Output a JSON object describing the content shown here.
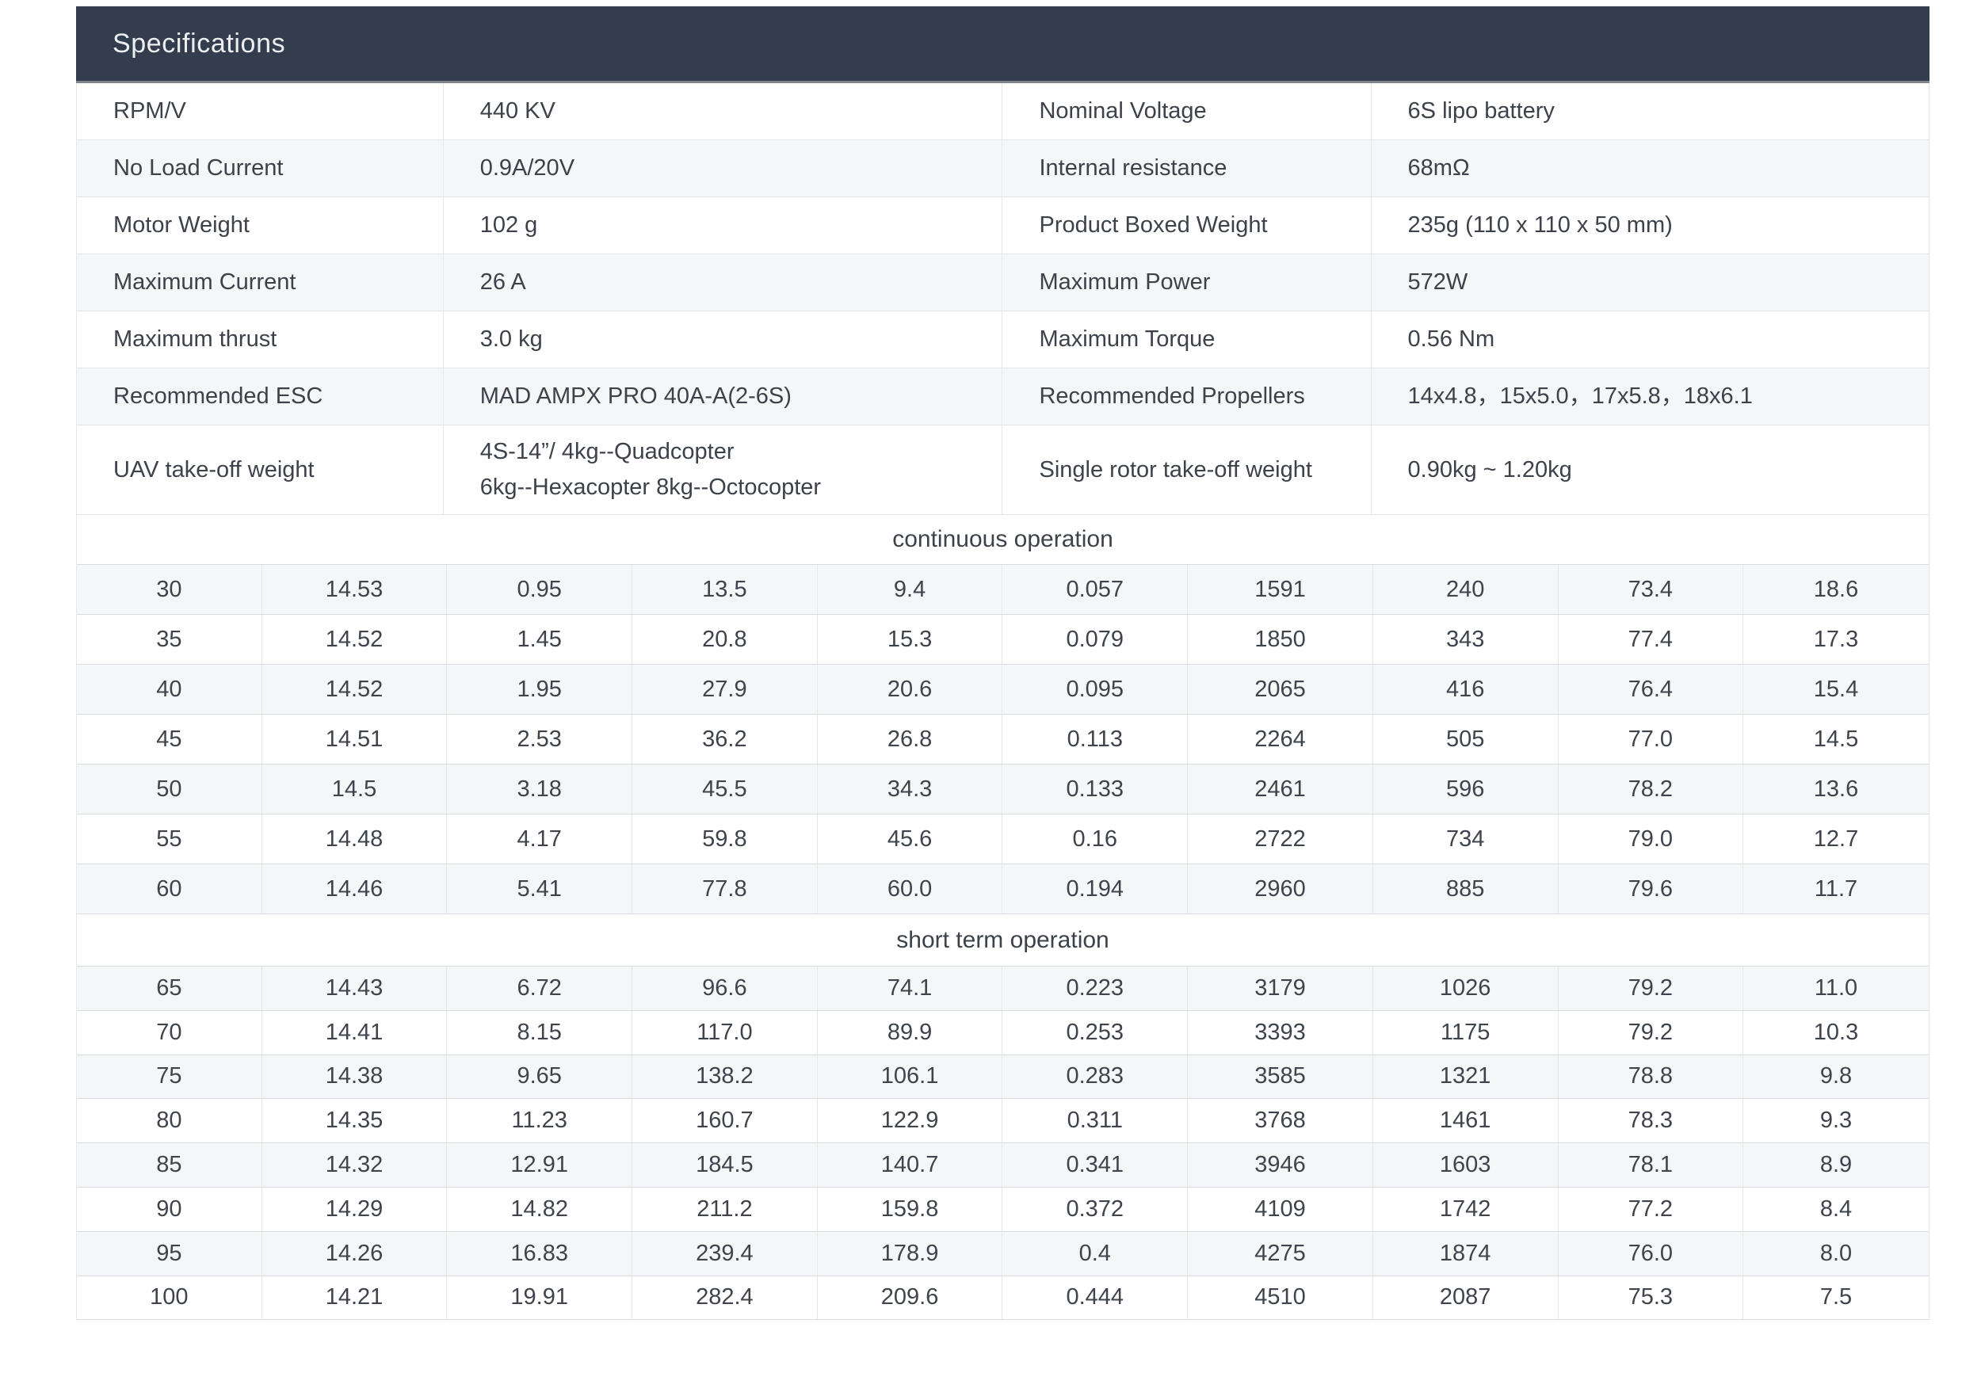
{
  "title": "Specifications",
  "colors": {
    "header_bg": "#333d4d",
    "header_text": "#eceef0",
    "header_divider": "#7f868f",
    "stripe": "#f5f6f8",
    "row_border": "#d9dce0",
    "row_border_light": "#e2e5e8",
    "col_border": "#e5e8eb",
    "text": "#3d424a",
    "num_text": "#3f444c"
  },
  "spec_table": {
    "rows": [
      {
        "cells": [
          {
            "label": "RPM/V",
            "value": "440 KV"
          },
          {
            "label": "Nominal Voltage",
            "value": "6S lipo battery"
          }
        ]
      },
      {
        "cells": [
          {
            "label": "No Load Current",
            "value": "0.9A/20V"
          },
          {
            "label": "Internal resistance",
            "value": "68mΩ"
          }
        ]
      },
      {
        "cells": [
          {
            "label": "Motor Weight",
            "value": "102 g"
          },
          {
            "label": "Product Boxed Weight",
            "value": "235g (110 x 110 x 50 mm)"
          }
        ]
      },
      {
        "cells": [
          {
            "label": "Maximum Current",
            "value": "26 A"
          },
          {
            "label": "Maximum Power",
            "value": "572W"
          }
        ]
      },
      {
        "cells": [
          {
            "label": "Maximum thrust",
            "value": "3.0 kg"
          },
          {
            "label": "Maximum Torque",
            "value": "0.56 Nm"
          }
        ]
      },
      {
        "cells": [
          {
            "label": "Recommended ESC",
            "value": "MAD AMPX PRO 40A-A(2-6S)"
          },
          {
            "label": "Recommended Propellers",
            "value": "14x4.8，15x5.0，17x5.8，18x6.1"
          }
        ]
      },
      {
        "tall": true,
        "cells": [
          {
            "label": "UAV take-off weight",
            "value": "4S-14”/ 4kg--Quadcopter\n6kg--Hexacopter  8kg--Octocopter"
          },
          {
            "label": "Single rotor take-off weight",
            "value": "0.90kg ~ 1.20kg"
          }
        ]
      }
    ]
  },
  "performance_table": {
    "sections": [
      {
        "title": "continuous operation",
        "rows": [
          [
            "30",
            "14.53",
            "0.95",
            "13.5",
            "9.4",
            "0.057",
            "1591",
            "240",
            "73.4",
            "18.6"
          ],
          [
            "35",
            "14.52",
            "1.45",
            "20.8",
            "15.3",
            "0.079",
            "1850",
            "343",
            "77.4",
            "17.3"
          ],
          [
            "40",
            "14.52",
            "1.95",
            "27.9",
            "20.6",
            "0.095",
            "2065",
            "416",
            "76.4",
            "15.4"
          ],
          [
            "45",
            "14.51",
            "2.53",
            "36.2",
            "26.8",
            "0.113",
            "2264",
            "505",
            "77.0",
            "14.5"
          ],
          [
            "50",
            "14.5",
            "3.18",
            "45.5",
            "34.3",
            "0.133",
            "2461",
            "596",
            "78.2",
            "13.6"
          ],
          [
            "55",
            "14.48",
            "4.17",
            "59.8",
            "45.6",
            "0.16",
            "2722",
            "734",
            "79.0",
            "12.7"
          ],
          [
            "60",
            "14.46",
            "5.41",
            "77.8",
            "60.0",
            "0.194",
            "2960",
            "885",
            "79.6",
            "11.7"
          ]
        ]
      },
      {
        "title": "short term operation",
        "rows": [
          [
            "65",
            "14.43",
            "6.72",
            "96.6",
            "74.1",
            "0.223",
            "3179",
            "1026",
            "79.2",
            "11.0"
          ],
          [
            "70",
            "14.41",
            "8.15",
            "117.0",
            "89.9",
            "0.253",
            "3393",
            "1175",
            "79.2",
            "10.3"
          ],
          [
            "75",
            "14.38",
            "9.65",
            "138.2",
            "106.1",
            "0.283",
            "3585",
            "1321",
            "78.8",
            "9.8"
          ],
          [
            "80",
            "14.35",
            "11.23",
            "160.7",
            "122.9",
            "0.311",
            "3768",
            "1461",
            "78.3",
            "9.3"
          ],
          [
            "85",
            "14.32",
            "12.91",
            "184.5",
            "140.7",
            "0.341",
            "3946",
            "1603",
            "78.1",
            "8.9"
          ],
          [
            "90",
            "14.29",
            "14.82",
            "211.2",
            "159.8",
            "0.372",
            "4109",
            "1742",
            "77.2",
            "8.4"
          ],
          [
            "95",
            "14.26",
            "16.83",
            "239.4",
            "178.9",
            "0.4",
            "4275",
            "1874",
            "76.0",
            "8.0"
          ],
          [
            "100",
            "14.21",
            "19.91",
            "282.4",
            "209.6",
            "0.444",
            "4510",
            "2087",
            "75.3",
            "7.5"
          ]
        ]
      }
    ]
  }
}
